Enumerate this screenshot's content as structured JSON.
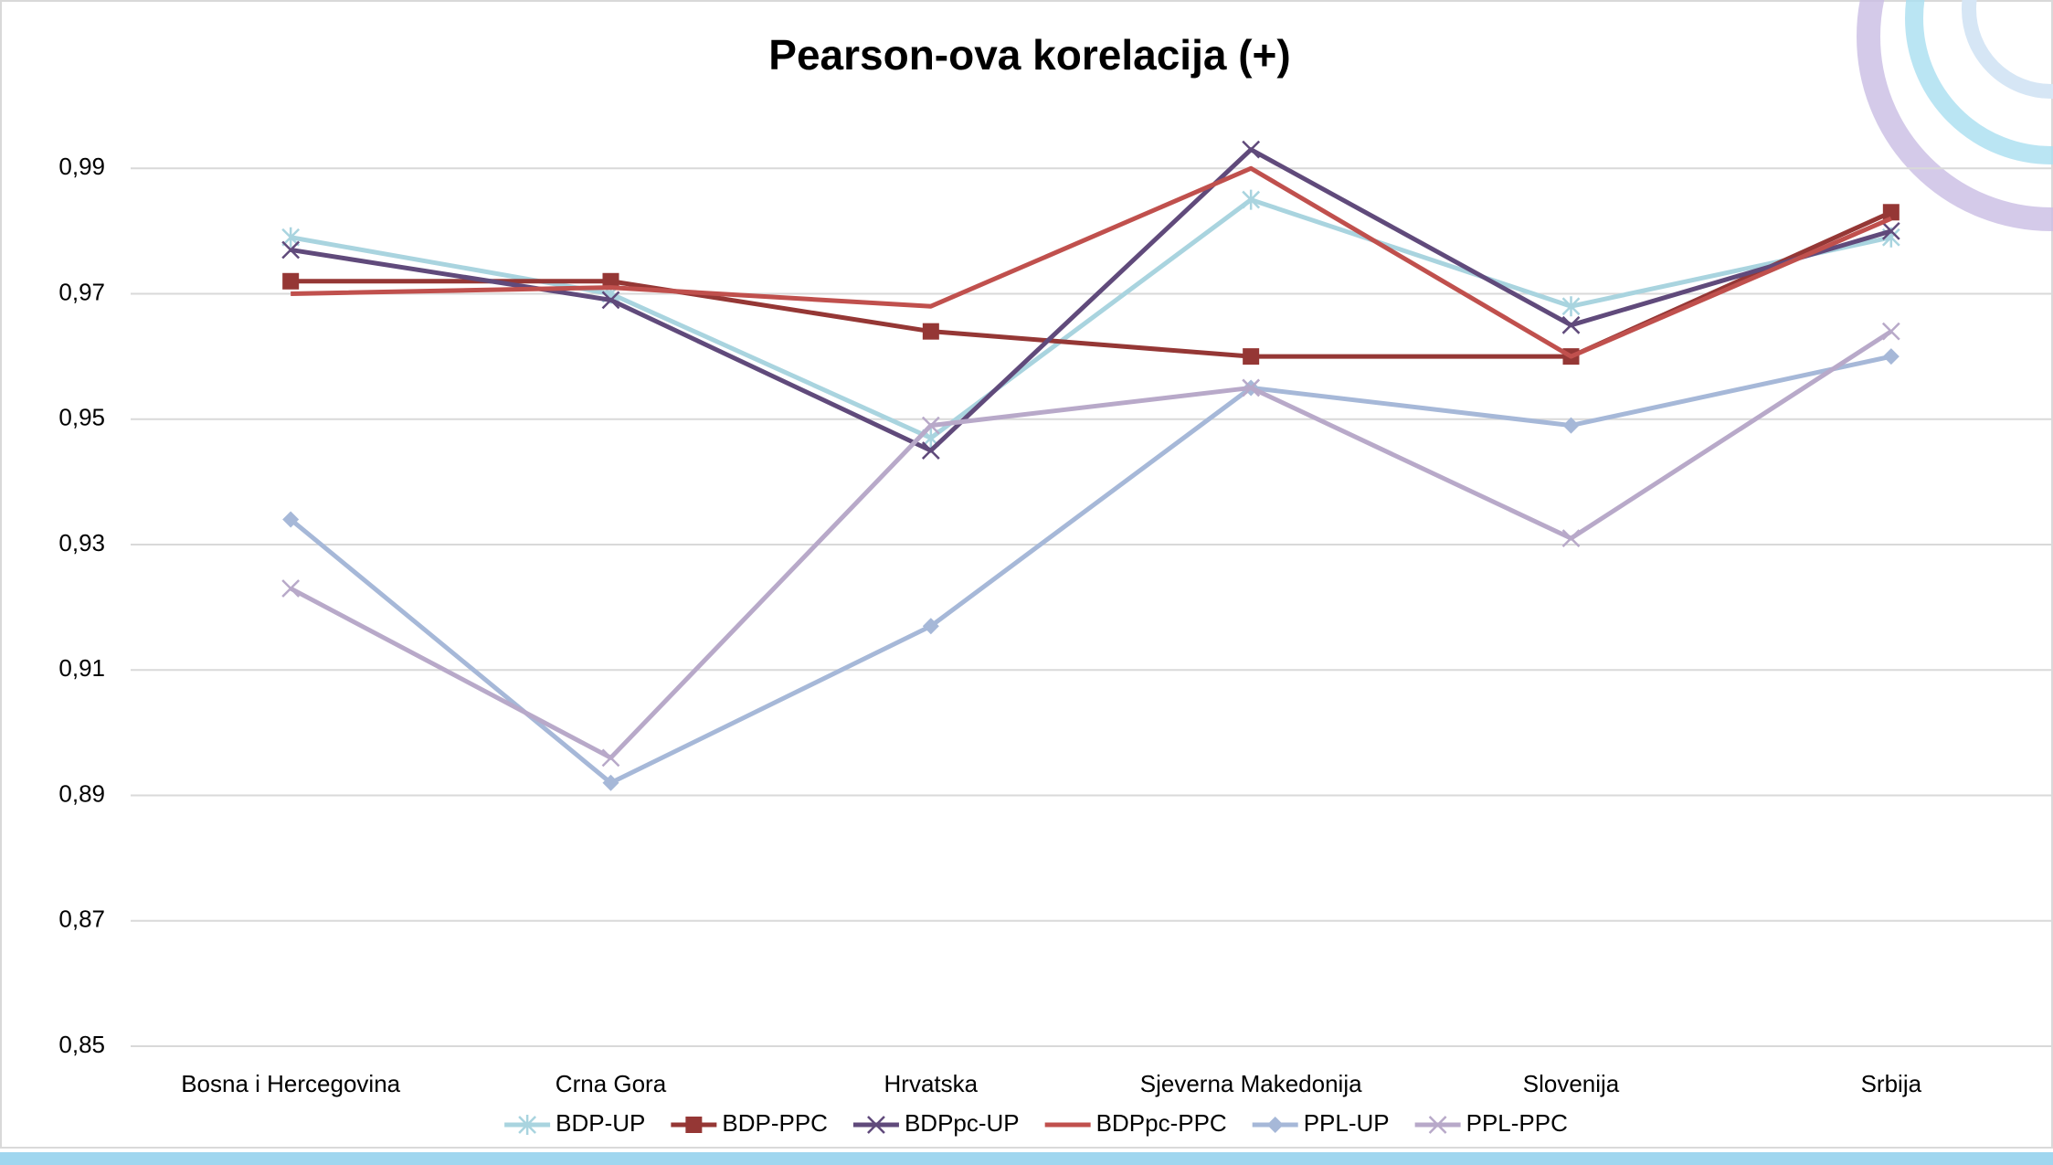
{
  "chart_data": {
    "type": "line",
    "title": "Pearson-ova korelacija (+)",
    "categories": [
      "Bosna i Hercegovina",
      "Crna Gora",
      "Hrvatska",
      "Sjeverna Makedonija",
      "Slovenija",
      "Srbija"
    ],
    "series": [
      {
        "name": "BDP-UP",
        "color": "#a9d4df",
        "marker": "asterisk",
        "values": [
          0.979,
          0.97,
          0.947,
          0.985,
          0.968,
          0.979
        ]
      },
      {
        "name": "BDP-PPC",
        "color": "#953735",
        "marker": "square",
        "values": [
          0.972,
          0.972,
          0.964,
          0.96,
          0.96,
          0.983
        ]
      },
      {
        "name": "BDPpc-UP",
        "color": "#604a7b",
        "marker": "x",
        "values": [
          0.977,
          0.969,
          0.945,
          0.993,
          0.965,
          0.98
        ]
      },
      {
        "name": "BDPpc-PPC",
        "color": "#c0504d",
        "marker": "none",
        "values": [
          0.97,
          0.971,
          0.968,
          0.99,
          0.96,
          0.982
        ]
      },
      {
        "name": "PPL-UP",
        "color": "#a6b8d8",
        "marker": "diamond",
        "values": [
          0.934,
          0.892,
          0.917,
          0.955,
          0.949,
          0.96
        ]
      },
      {
        "name": "PPL-PPC",
        "color": "#b8a9c9",
        "marker": "x",
        "values": [
          0.923,
          0.896,
          0.949,
          0.955,
          0.931,
          0.964
        ]
      }
    ],
    "ylim": [
      0.85,
      1.01
    ],
    "yticks": [
      {
        "value": 0.85,
        "label": "0,85"
      },
      {
        "value": 0.87,
        "label": "0,87"
      },
      {
        "value": 0.89,
        "label": "0,89"
      },
      {
        "value": 0.91,
        "label": "0,91"
      },
      {
        "value": 0.93,
        "label": "0,93"
      },
      {
        "value": 0.95,
        "label": "0,95"
      },
      {
        "value": 0.97,
        "label": "0,97"
      },
      {
        "value": 0.99,
        "label": "0,99"
      }
    ],
    "grid": true,
    "legend": "bottom"
  }
}
